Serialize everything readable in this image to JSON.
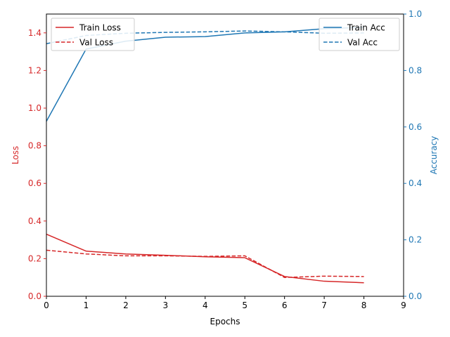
{
  "chart_data": {
    "type": "line",
    "title": "",
    "xlabel": "Epochs",
    "ylabel_left": "Loss",
    "ylabel_right": "Accuracy",
    "xlim": [
      0,
      9
    ],
    "ylim_left": [
      0,
      1.5
    ],
    "ylim_right": [
      0,
      1.0
    ],
    "x_ticks": [
      "0",
      "1",
      "2",
      "3",
      "4",
      "5",
      "6",
      "7",
      "8",
      "9"
    ],
    "y_left_ticks": [
      "0.0",
      "0.2",
      "0.4",
      "0.6",
      "0.8",
      "1.0",
      "1.2",
      "1.4"
    ],
    "y_right_ticks": [
      "0.0",
      "0.2",
      "0.4",
      "0.6",
      "0.8",
      "1.0"
    ],
    "grid": false,
    "colors": {
      "loss": "#d62728",
      "accuracy": "#1f77b4",
      "axis": "#000000"
    },
    "x": [
      0,
      1,
      2,
      3,
      4,
      5,
      6,
      7,
      8
    ],
    "series_left": [
      {
        "name": "Train Loss",
        "style": "solid",
        "values": [
          0.33,
          0.24,
          0.225,
          0.218,
          0.21,
          0.205,
          0.105,
          0.08,
          0.072
        ]
      },
      {
        "name": "Val Loss",
        "style": "dashed",
        "values": [
          0.245,
          0.225,
          0.215,
          0.215,
          0.212,
          0.215,
          0.1,
          0.107,
          0.105
        ]
      }
    ],
    "series_right": [
      {
        "name": "Train Acc",
        "style": "solid",
        "values": [
          0.62,
          0.876,
          0.904,
          0.918,
          0.92,
          0.933,
          0.937,
          0.948,
          0.953
        ]
      },
      {
        "name": "Val Acc",
        "style": "dashed",
        "values": [
          0.895,
          0.924,
          0.932,
          0.935,
          0.937,
          0.94,
          0.937,
          0.932,
          0.933
        ]
      }
    ],
    "legend_left": {
      "placement": "upper-left",
      "entries": [
        "Train Loss",
        "Val Loss"
      ]
    },
    "legend_right": {
      "placement": "upper-right",
      "entries": [
        "Train Acc",
        "Val Acc"
      ]
    }
  }
}
